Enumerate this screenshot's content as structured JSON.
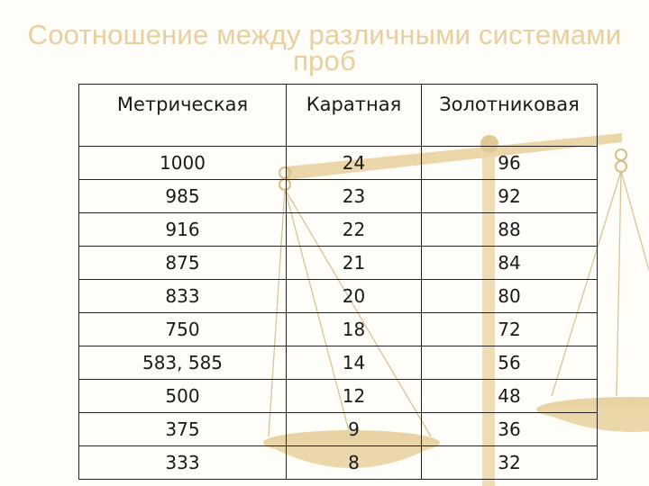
{
  "title": [
    "Соотношение между различными системами",
    "проб"
  ],
  "table": {
    "headers": [
      "Метрическая",
      "Каратная",
      "Золотниковая"
    ],
    "rows": [
      [
        "1000",
        "24",
        "96"
      ],
      [
        "985",
        "23",
        "92"
      ],
      [
        "916",
        "22",
        "88"
      ],
      [
        "875",
        "21",
        "84"
      ],
      [
        "833",
        "20",
        "80"
      ],
      [
        "750",
        "18",
        "72"
      ],
      [
        "583, 585",
        "14",
        "56"
      ],
      [
        "500",
        "12",
        "48"
      ],
      [
        "375",
        "9",
        "36"
      ],
      [
        "333",
        "8",
        "32"
      ]
    ]
  },
  "colors": {
    "title": "#e8cfa0",
    "scales": "#e6cf9f",
    "text": "#1a1a1a"
  }
}
